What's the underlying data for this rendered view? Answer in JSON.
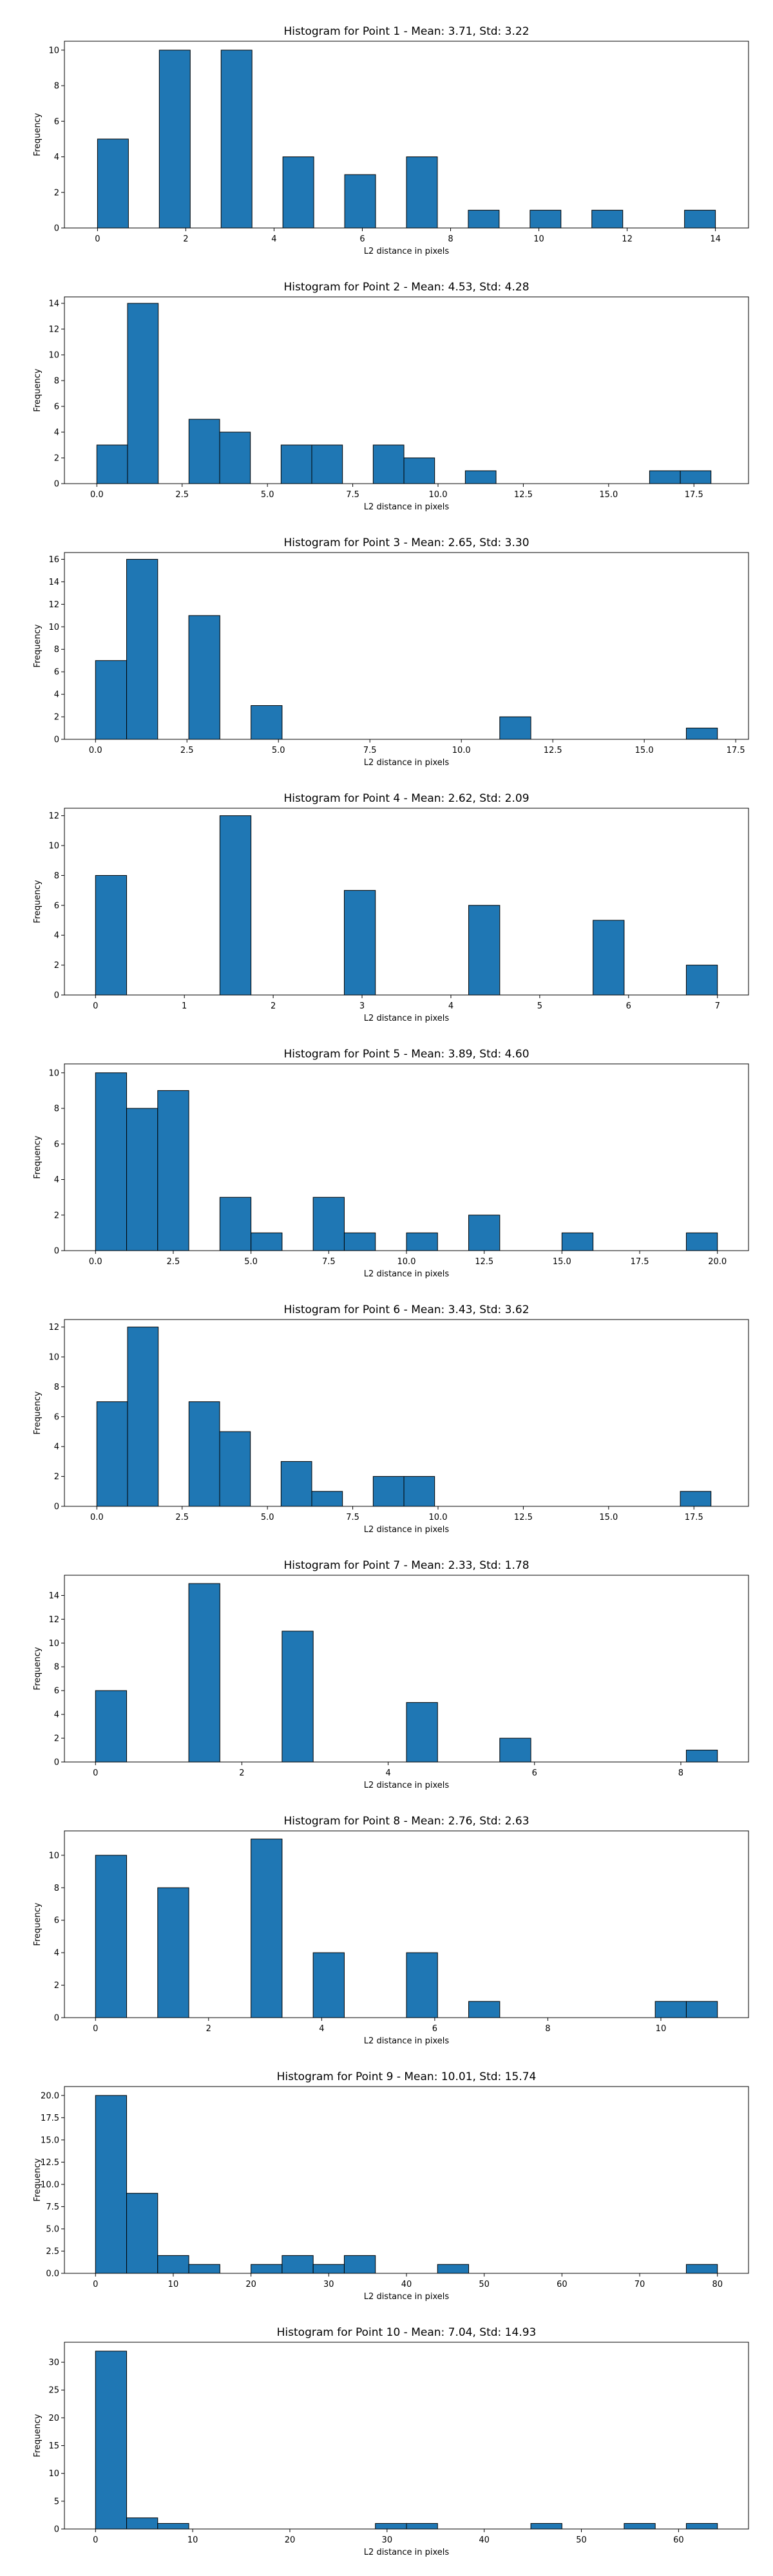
{
  "chart_data": [
    {
      "type": "bar",
      "title": "Histogram for Point 1 - Mean: 3.71, Std: 3.22",
      "xlabel": "L2 distance in pixels",
      "ylabel": "Frequency",
      "xlim": [
        -0.75,
        14.75
      ],
      "ylim": [
        0,
        10.5
      ],
      "xticks": [
        0,
        2,
        4,
        6,
        8,
        10,
        12,
        14
      ],
      "yticks": [
        0,
        2,
        4,
        6,
        8,
        10
      ],
      "bin_width": 0.7,
      "bins": [
        [
          0,
          5
        ],
        [
          1.4,
          10
        ],
        [
          2.8,
          10
        ],
        [
          4.2,
          4
        ],
        [
          5.6,
          3
        ],
        [
          7,
          4
        ],
        [
          8.4,
          1
        ],
        [
          9.8,
          1
        ],
        [
          11.2,
          1
        ],
        [
          13.3,
          1
        ]
      ]
    },
    {
      "type": "bar",
      "title": "Histogram for Point 2 - Mean: 4.53, Std: 4.28",
      "xlabel": "L2 distance in pixels",
      "ylabel": "Frequency",
      "xlim": [
        -0.95,
        19.1
      ],
      "ylim": [
        0,
        14.5
      ],
      "xticks": [
        0.0,
        2.5,
        5.0,
        7.5,
        10.0,
        12.5,
        15.0,
        17.5
      ],
      "xtick_labels": [
        "0.0",
        "2.5",
        "5.0",
        "7.5",
        "10.0",
        "12.5",
        "15.0",
        "17.5"
      ],
      "yticks": [
        0,
        2,
        4,
        6,
        8,
        10,
        12,
        14
      ],
      "bin_width": 0.9,
      "bins": [
        [
          0,
          3
        ],
        [
          0.9,
          14
        ],
        [
          2.7,
          5
        ],
        [
          3.6,
          4
        ],
        [
          5.4,
          3
        ],
        [
          6.3,
          3
        ],
        [
          8.1,
          3
        ],
        [
          9,
          2
        ],
        [
          10.8,
          1
        ],
        [
          16.2,
          1
        ],
        [
          17.1,
          1
        ]
      ]
    },
    {
      "type": "bar",
      "title": "Histogram for Point 3 - Mean: 2.65, Std: 3.30",
      "xlabel": "L2 distance in pixels",
      "ylabel": "Frequency",
      "xlim": [
        -0.85,
        17.85
      ],
      "ylim": [
        0,
        16.6
      ],
      "xticks": [
        0.0,
        2.5,
        5.0,
        7.5,
        10.0,
        12.5,
        15.0,
        17.5
      ],
      "xtick_labels": [
        "0.0",
        "2.5",
        "5.0",
        "7.5",
        "10.0",
        "12.5",
        "15.0",
        "17.5"
      ],
      "yticks": [
        0,
        2,
        4,
        6,
        8,
        10,
        12,
        14,
        16
      ],
      "bin_width": 0.85,
      "bins": [
        [
          0,
          7
        ],
        [
          0.85,
          16
        ],
        [
          2.55,
          11
        ],
        [
          4.25,
          3
        ],
        [
          11.05,
          2
        ],
        [
          16.15,
          1
        ]
      ]
    },
    {
      "type": "bar",
      "title": "Histogram for Point 4 - Mean: 2.62, Std: 2.09",
      "xlabel": "L2 distance in pixels",
      "ylabel": "Frequency",
      "xlim": [
        -0.35,
        7.35
      ],
      "ylim": [
        0,
        12.5
      ],
      "xticks": [
        0,
        1,
        2,
        3,
        4,
        5,
        6,
        7
      ],
      "yticks": [
        0,
        2,
        4,
        6,
        8,
        10,
        12
      ],
      "bin_width": 0.35,
      "bins": [
        [
          0,
          8
        ],
        [
          1.4,
          12
        ],
        [
          2.8,
          7
        ],
        [
          4.2,
          6
        ],
        [
          5.6,
          5
        ],
        [
          6.65,
          2
        ]
      ]
    },
    {
      "type": "bar",
      "title": "Histogram for Point 5 - Mean: 3.89, Std: 4.60",
      "xlabel": "L2 distance in pixels",
      "ylabel": "Frequency",
      "xlim": [
        -1,
        21
      ],
      "ylim": [
        0,
        10.5
      ],
      "xticks": [
        0.0,
        2.5,
        5.0,
        7.5,
        10.0,
        12.5,
        15.0,
        17.5,
        20.0
      ],
      "xtick_labels": [
        "0.0",
        "2.5",
        "5.0",
        "7.5",
        "10.0",
        "12.5",
        "15.0",
        "17.5",
        "20.0"
      ],
      "yticks": [
        0,
        2,
        4,
        6,
        8,
        10
      ],
      "bin_width": 1,
      "bins": [
        [
          0,
          10
        ],
        [
          1,
          8
        ],
        [
          2,
          9
        ],
        [
          4,
          3
        ],
        [
          5,
          1
        ],
        [
          7,
          3
        ],
        [
          8,
          1
        ],
        [
          10,
          1
        ],
        [
          12,
          2
        ],
        [
          15,
          1
        ],
        [
          19,
          1
        ]
      ]
    },
    {
      "type": "bar",
      "title": "Histogram for Point 6 - Mean: 3.43, Std: 3.62",
      "xlabel": "L2 distance in pixels",
      "ylabel": "Frequency",
      "xlim": [
        -0.95,
        19.1
      ],
      "ylim": [
        0,
        12.5
      ],
      "xticks": [
        0.0,
        2.5,
        5.0,
        7.5,
        10.0,
        12.5,
        15.0,
        17.5
      ],
      "xtick_labels": [
        "0.0",
        "2.5",
        "5.0",
        "7.5",
        "10.0",
        "12.5",
        "15.0",
        "17.5"
      ],
      "yticks": [
        0,
        2,
        4,
        6,
        8,
        10,
        12
      ],
      "bin_width": 0.9,
      "bins": [
        [
          0,
          7
        ],
        [
          0.9,
          12
        ],
        [
          2.7,
          7
        ],
        [
          3.6,
          5
        ],
        [
          5.4,
          3
        ],
        [
          6.3,
          1
        ],
        [
          8.1,
          2
        ],
        [
          9,
          2
        ],
        [
          17.1,
          1
        ]
      ]
    },
    {
      "type": "bar",
      "title": "Histogram for Point 7 - Mean: 2.33, Std: 1.78",
      "xlabel": "L2 distance in pixels",
      "ylabel": "Frequency",
      "xlim": [
        -0.425,
        8.925
      ],
      "ylim": [
        0,
        15.7
      ],
      "xticks": [
        0,
        2,
        4,
        6,
        8
      ],
      "yticks": [
        0,
        2,
        4,
        6,
        8,
        10,
        12,
        14
      ],
      "bin_width": 0.425,
      "bins": [
        [
          0,
          6
        ],
        [
          1.275,
          15
        ],
        [
          2.55,
          11
        ],
        [
          4.25,
          5
        ],
        [
          5.525,
          2
        ],
        [
          8.075,
          1
        ]
      ]
    },
    {
      "type": "bar",
      "title": "Histogram for Point 8 - Mean: 2.76, Std: 2.63",
      "xlabel": "L2 distance in pixels",
      "ylabel": "Frequency",
      "xlim": [
        -0.55,
        11.55
      ],
      "ylim": [
        0,
        11.5
      ],
      "xticks": [
        0,
        2,
        4,
        6,
        8,
        10
      ],
      "yticks": [
        0,
        2,
        4,
        6,
        8,
        10
      ],
      "bin_width": 0.55,
      "bins": [
        [
          0,
          10
        ],
        [
          1.1,
          8
        ],
        [
          2.75,
          11
        ],
        [
          3.85,
          4
        ],
        [
          5.5,
          4
        ],
        [
          6.6,
          1
        ],
        [
          9.9,
          1
        ],
        [
          10.45,
          1
        ]
      ]
    },
    {
      "type": "bar",
      "title": "Histogram for Point 9 - Mean: 10.01, Std: 15.74",
      "xlabel": "L2 distance in pixels",
      "ylabel": "Frequency",
      "xlim": [
        -4,
        84
      ],
      "ylim": [
        0,
        21
      ],
      "xticks": [
        0,
        10,
        20,
        30,
        40,
        50,
        60,
        70,
        80
      ],
      "yticks": [
        0,
        2.5,
        5.0,
        7.5,
        10.0,
        12.5,
        15.0,
        17.5,
        20.0
      ],
      "ytick_labels": [
        "0.0",
        "2.5",
        "5.0",
        "7.5",
        "10.0",
        "12.5",
        "15.0",
        "17.5",
        "20.0"
      ],
      "bin_width": 4,
      "bins": [
        [
          0,
          20
        ],
        [
          4,
          9
        ],
        [
          8,
          2
        ],
        [
          12,
          1
        ],
        [
          20,
          1
        ],
        [
          24,
          2
        ],
        [
          28,
          1
        ],
        [
          32,
          2
        ],
        [
          44,
          1
        ],
        [
          76,
          1
        ]
      ]
    },
    {
      "type": "bar",
      "title": "Histogram for Point 10 - Mean: 7.04, Std: 14.93",
      "xlabel": "L2 distance in pixels",
      "ylabel": "Frequency",
      "xlim": [
        -3.2,
        67.2
      ],
      "ylim": [
        0,
        33.6
      ],
      "xticks": [
        0,
        10,
        20,
        30,
        40,
        50,
        60
      ],
      "yticks": [
        0,
        5,
        10,
        15,
        20,
        25,
        30
      ],
      "bin_width": 3.2,
      "bins": [
        [
          0,
          32
        ],
        [
          3.2,
          2
        ],
        [
          6.4,
          1
        ],
        [
          28.8,
          1
        ],
        [
          32,
          1
        ],
        [
          44.8,
          1
        ],
        [
          54.4,
          1
        ],
        [
          60.8,
          1
        ]
      ]
    }
  ]
}
